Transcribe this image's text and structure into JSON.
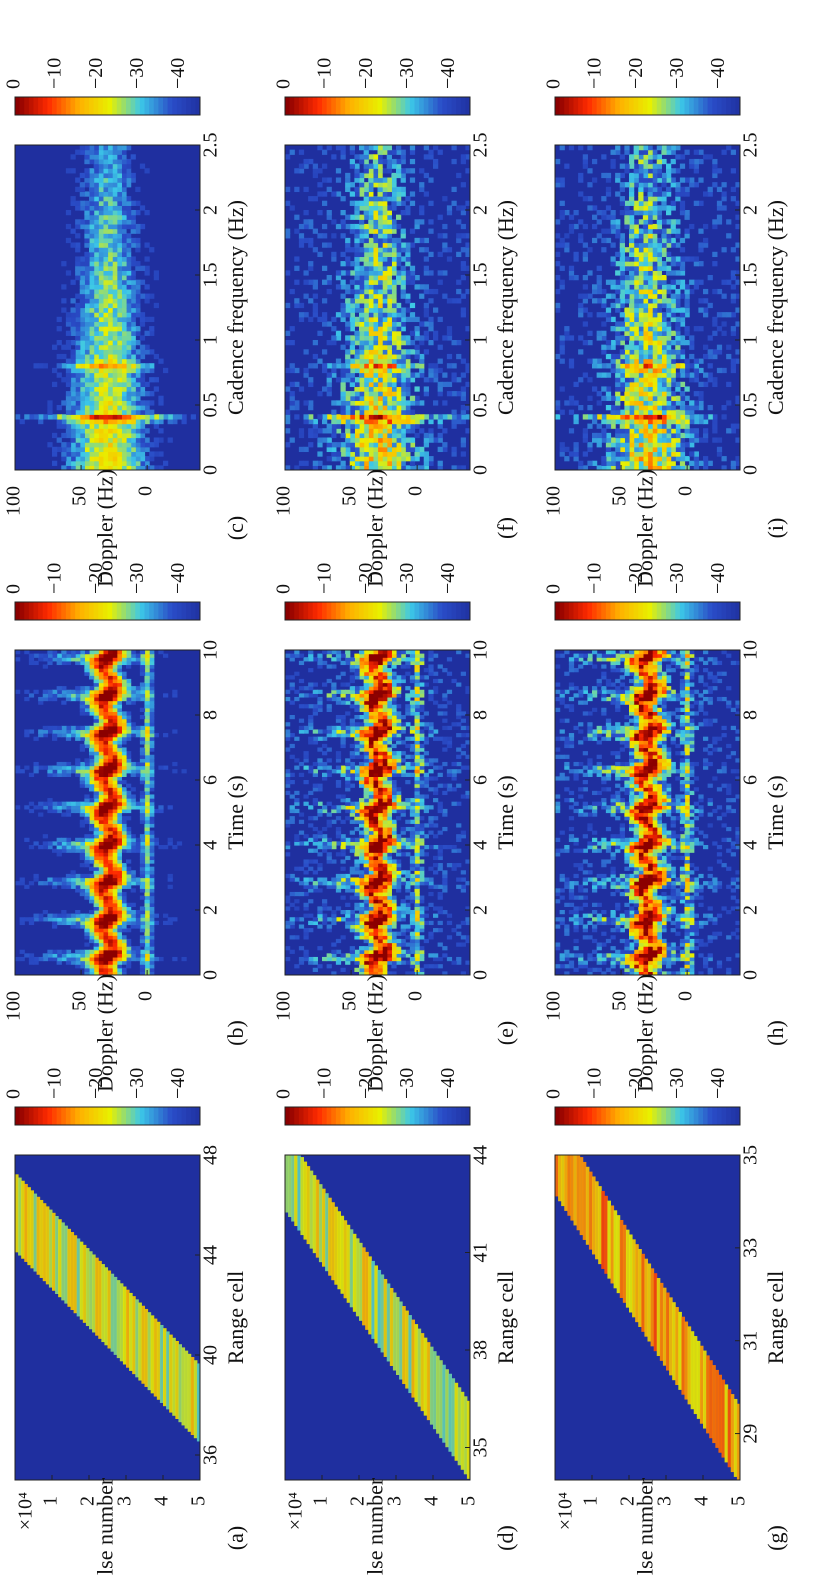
{
  "figure": {
    "orientation": "rotated 90 degrees clockwise",
    "colormap": [
      "#ff0000",
      "#ffa500",
      "#ffff00",
      "#00ffff",
      "#000080"
    ],
    "background_color": "#1f2f9f"
  },
  "chart_data": [
    {
      "id": "a",
      "type": "heatmap",
      "panel_label": "(a)",
      "xlabel": "Range cell",
      "ylabel": "Pulse number",
      "y_exponent": "×10⁴",
      "x_ticks": [
        "36",
        "40",
        "44",
        "48"
      ],
      "y_ticks": [
        "1",
        "2",
        "3",
        "4",
        "5"
      ],
      "xlim": [
        35,
        48
      ],
      "ylim": [
        0,
        5
      ],
      "colorbar": {
        "ticks": [
          "0",
          "−10",
          "−20",
          "−30",
          "−40"
        ],
        "range": [
          -45,
          0
        ]
      },
      "track": {
        "start": [
          38.5,
          4.7
        ],
        "end": [
          44.5,
          0.8
        ]
      }
    },
    {
      "id": "b",
      "type": "heatmap",
      "panel_label": "(b)",
      "xlabel": "Time (s)",
      "ylabel": "Doppler (Hz)",
      "x_ticks": [
        "0",
        "2",
        "4",
        "6",
        "8",
        "10"
      ],
      "y_ticks": [
        "100",
        "50",
        "0"
      ],
      "xlim": [
        0,
        10
      ],
      "ylim": [
        -40,
        100
      ],
      "colorbar": {
        "ticks": [
          "0",
          "−10",
          "−20",
          "−30",
          "−40"
        ],
        "range": [
          -45,
          0
        ]
      },
      "torso_doppler": 30
    },
    {
      "id": "c",
      "type": "heatmap",
      "panel_label": "(c)",
      "xlabel": "Cadence frequency (Hz)",
      "ylabel": "Doppler (Hz)",
      "x_ticks": [
        "0",
        "0.5",
        "1",
        "1.5",
        "2",
        "2.5"
      ],
      "y_ticks": [
        "100",
        "50",
        "0"
      ],
      "xlim": [
        0,
        2.5
      ],
      "ylim": [
        -40,
        100
      ],
      "colorbar": {
        "ticks": [
          "0",
          "−10",
          "−20",
          "−30",
          "−40"
        ],
        "range": [
          -45,
          0
        ]
      },
      "fundamental_cadence": 0.4
    },
    {
      "id": "d",
      "type": "heatmap",
      "panel_label": "(d)",
      "xlabel": "Range cell",
      "ylabel": "Pulse number",
      "y_exponent": "×10⁴",
      "x_ticks": [
        "35",
        "38",
        "41",
        "44"
      ],
      "y_ticks": [
        "1",
        "2",
        "3",
        "4",
        "5"
      ],
      "xlim": [
        34,
        44
      ],
      "ylim": [
        0,
        5
      ],
      "colorbar": {
        "ticks": [
          "0",
          "−10",
          "−20",
          "−30",
          "−40"
        ],
        "range": [
          -45,
          0
        ]
      },
      "track": {
        "start": [
          35.5,
          4.8
        ],
        "end": [
          42.5,
          0.6
        ]
      }
    },
    {
      "id": "e",
      "type": "heatmap",
      "panel_label": "(e)",
      "xlabel": "Time (s)",
      "ylabel": "Doppler (Hz)",
      "x_ticks": [
        "0",
        "2",
        "4",
        "6",
        "8",
        "10"
      ],
      "y_ticks": [
        "100",
        "50",
        "0"
      ],
      "xlim": [
        0,
        10
      ],
      "ylim": [
        -40,
        100
      ],
      "colorbar": {
        "ticks": [
          "0",
          "−10",
          "−20",
          "−30",
          "−40"
        ],
        "range": [
          -45,
          0
        ]
      },
      "torso_doppler": 30
    },
    {
      "id": "f",
      "type": "heatmap",
      "panel_label": "(f)",
      "xlabel": "Cadence frequency (Hz)",
      "ylabel": "Doppler (Hz)",
      "x_ticks": [
        "0",
        "0.5",
        "1",
        "1.5",
        "2",
        "2.5"
      ],
      "y_ticks": [
        "100",
        "50",
        "0"
      ],
      "xlim": [
        0,
        2.5
      ],
      "ylim": [
        -40,
        100
      ],
      "colorbar": {
        "ticks": [
          "0",
          "−10",
          "−20",
          "−30",
          "−40"
        ],
        "range": [
          -45,
          0
        ]
      },
      "fundamental_cadence": 0.4
    },
    {
      "id": "g",
      "type": "heatmap",
      "panel_label": "(g)",
      "xlabel": "Range cell",
      "ylabel": "Pulse number",
      "y_exponent": "×10⁴",
      "x_ticks": [
        "29",
        "31",
        "33",
        "35"
      ],
      "y_ticks": [
        "1",
        "2",
        "3",
        "4",
        "5"
      ],
      "xlim": [
        28,
        35
      ],
      "ylim": [
        0,
        5
      ],
      "colorbar": {
        "ticks": [
          "0",
          "−10",
          "−20",
          "−30",
          "−40"
        ],
        "range": [
          -45,
          0
        ]
      },
      "track": {
        "start": [
          29,
          4.8
        ],
        "end": [
          34,
          0.8
        ]
      }
    },
    {
      "id": "h",
      "type": "heatmap",
      "panel_label": "(h)",
      "xlabel": "Time (s)",
      "ylabel": "Doppler (Hz)",
      "x_ticks": [
        "0",
        "2",
        "4",
        "6",
        "8",
        "10"
      ],
      "y_ticks": [
        "100",
        "50",
        "0"
      ],
      "xlim": [
        0,
        10
      ],
      "ylim": [
        -40,
        100
      ],
      "colorbar": {
        "ticks": [
          "0",
          "−10",
          "−20",
          "−30",
          "−40"
        ],
        "range": [
          -45,
          0
        ]
      },
      "torso_doppler": 30
    },
    {
      "id": "i",
      "type": "heatmap",
      "panel_label": "(i)",
      "xlabel": "Cadence frequency (Hz)",
      "ylabel": "Doppler (Hz)",
      "x_ticks": [
        "0",
        "0.5",
        "1",
        "1.5",
        "2",
        "2.5"
      ],
      "y_ticks": [
        "100",
        "50",
        "0"
      ],
      "xlim": [
        0,
        2.5
      ],
      "ylim": [
        -40,
        100
      ],
      "colorbar": {
        "ticks": [
          "0",
          "−10",
          "−20",
          "−30",
          "−40"
        ],
        "range": [
          -45,
          0
        ]
      },
      "fundamental_cadence": 0.4
    }
  ]
}
